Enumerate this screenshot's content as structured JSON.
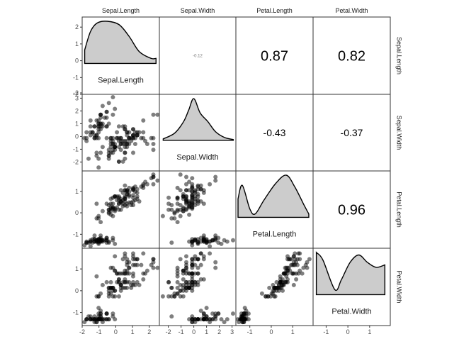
{
  "chart_data": {
    "type": "scatter-matrix",
    "variables": [
      "Sepal.Length",
      "Sepal.Width",
      "Petal.Length",
      "Petal.Width"
    ],
    "ranges": {
      "Sepal.Length": [
        -2,
        2.6
      ],
      "Sepal.Width": [
        -2.7,
        3.3
      ],
      "Petal.Length": [
        -1.65,
        1.95
      ],
      "Petal.Width": [
        -1.6,
        1.95
      ]
    },
    "ticks": {
      "Sepal.Length": [
        -2,
        -1,
        0,
        1,
        2
      ],
      "Sepal.Width": [
        -2,
        -1,
        0,
        1,
        2,
        3
      ],
      "Petal.Length": [
        -1,
        0,
        1
      ],
      "Petal.Width": [
        -1,
        0,
        1
      ]
    },
    "correlations": [
      {
        "row": "Sepal.Length",
        "col": "Sepal.Width",
        "label": "",
        "tiny": "-0.12"
      },
      {
        "row": "Sepal.Length",
        "col": "Petal.Length",
        "label": "0.87"
      },
      {
        "row": "Sepal.Length",
        "col": "Petal.Width",
        "label": "0.82"
      },
      {
        "row": "Sepal.Width",
        "col": "Petal.Length",
        "label": "-0.43"
      },
      {
        "row": "Sepal.Width",
        "col": "Petal.Width",
        "label": "-0.37"
      },
      {
        "row": "Petal.Length",
        "col": "Petal.Width",
        "label": "0.96"
      }
    ],
    "densities": {
      "Sepal.Length": [
        [
          -1.85,
          0.8
        ],
        [
          -1.5,
          1.9
        ],
        [
          -1.1,
          2.4
        ],
        [
          -0.5,
          2.5
        ],
        [
          0.2,
          2.3
        ],
        [
          0.8,
          1.6
        ],
        [
          1.4,
          0.7
        ],
        [
          2.1,
          0.3
        ],
        [
          2.4,
          0.3
        ]
      ],
      "Sepal.Width": [
        [
          -2.4,
          0.1
        ],
        [
          -1.5,
          0.5
        ],
        [
          -0.8,
          1.3
        ],
        [
          -0.4,
          2.1
        ],
        [
          0,
          2.9
        ],
        [
          0.5,
          1.9
        ],
        [
          1.1,
          1.3
        ],
        [
          1.7,
          0.6
        ],
        [
          2.4,
          0.2
        ],
        [
          3.1,
          0.05
        ]
      ],
      "Petal.Length": [
        [
          -1.55,
          0.55
        ],
        [
          -1.35,
          0.95
        ],
        [
          -1.0,
          0.25
        ],
        [
          -0.75,
          0.1
        ],
        [
          -0.35,
          0.5
        ],
        [
          0.2,
          1.0
        ],
        [
          0.7,
          1.25
        ],
        [
          1.1,
          0.9
        ],
        [
          1.5,
          0.4
        ],
        [
          1.75,
          0.1
        ]
      ],
      "Petal.Width": [
        [
          -1.45,
          0.85
        ],
        [
          -1.15,
          0.7
        ],
        [
          -0.6,
          0.1
        ],
        [
          -0.3,
          0.3
        ],
        [
          0.1,
          0.65
        ],
        [
          0.5,
          0.8
        ],
        [
          0.9,
          0.65
        ],
        [
          1.3,
          0.55
        ],
        [
          1.7,
          0.6
        ]
      ]
    },
    "observations": [
      {
        "sl": -0.9,
        "sw": 1.0,
        "pl": -1.34,
        "pw": -1.31
      },
      {
        "sl": -1.14,
        "sw": -0.13,
        "pl": -1.34,
        "pw": -1.31
      },
      {
        "sl": -1.38,
        "sw": 0.33,
        "pl": -1.39,
        "pw": -1.31
      },
      {
        "sl": -1.5,
        "sw": 0.1,
        "pl": -1.28,
        "pw": -1.31
      },
      {
        "sl": -1.02,
        "sw": 1.25,
        "pl": -1.34,
        "pw": -1.31
      },
      {
        "sl": -0.54,
        "sw": 1.93,
        "pl": -1.17,
        "pw": -1.05
      },
      {
        "sl": -1.5,
        "sw": 0.79,
        "pl": -1.34,
        "pw": -1.18
      },
      {
        "sl": -1.02,
        "sw": 0.79,
        "pl": -1.28,
        "pw": -1.31
      },
      {
        "sl": -1.74,
        "sw": -0.36,
        "pl": -1.34,
        "pw": -1.31
      },
      {
        "sl": -1.14,
        "sw": 0.1,
        "pl": -1.28,
        "pw": -1.44
      },
      {
        "sl": -0.54,
        "sw": 1.47,
        "pl": -1.28,
        "pw": -1.31
      },
      {
        "sl": -1.26,
        "sw": 0.79,
        "pl": -1.23,
        "pw": -1.31
      },
      {
        "sl": -1.26,
        "sw": -0.13,
        "pl": -1.34,
        "pw": -1.44
      },
      {
        "sl": -1.86,
        "sw": -0.13,
        "pl": -1.51,
        "pw": -1.44
      },
      {
        "sl": -0.05,
        "sw": 2.16,
        "pl": -1.45,
        "pw": -1.31
      },
      {
        "sl": -0.17,
        "sw": 3.08,
        "pl": -1.28,
        "pw": -1.05
      },
      {
        "sl": -0.54,
        "sw": 1.93,
        "pl": -1.39,
        "pw": -1.05
      },
      {
        "sl": -0.9,
        "sw": 1.0,
        "pl": -1.34,
        "pw": -1.18
      },
      {
        "sl": -0.17,
        "sw": 1.7,
        "pl": -1.17,
        "pw": -1.18
      },
      {
        "sl": -0.9,
        "sw": 1.7,
        "pl": -1.28,
        "pw": -1.18
      },
      {
        "sl": -0.54,
        "sw": 0.79,
        "pl": -1.17,
        "pw": -1.31
      },
      {
        "sl": -0.9,
        "sw": 1.47,
        "pl": -1.28,
        "pw": -1.05
      },
      {
        "sl": -1.5,
        "sw": 1.25,
        "pl": -1.56,
        "pw": -1.31
      },
      {
        "sl": -0.9,
        "sw": 0.56,
        "pl": -1.17,
        "pw": -0.92
      },
      {
        "sl": -1.26,
        "sw": 0.79,
        "pl": -1.06,
        "pw": -1.31
      },
      {
        "sl": -1.02,
        "sw": -0.13,
        "pl": -1.23,
        "pw": -1.31
      },
      {
        "sl": -1.02,
        "sw": 0.79,
        "pl": -1.23,
        "pw": -1.05
      },
      {
        "sl": -0.78,
        "sw": 1.0,
        "pl": -1.28,
        "pw": -1.31
      },
      {
        "sl": -0.78,
        "sw": 0.79,
        "pl": -1.34,
        "pw": -1.31
      },
      {
        "sl": -1.38,
        "sw": 0.33,
        "pl": -1.23,
        "pw": -1.31
      },
      {
        "sl": -1.26,
        "sw": 0.1,
        "pl": -1.23,
        "pw": -1.31
      },
      {
        "sl": -0.54,
        "sw": 0.79,
        "pl": -1.28,
        "pw": -1.05
      },
      {
        "sl": -0.78,
        "sw": 2.39,
        "pl": -1.28,
        "pw": -1.44
      },
      {
        "sl": -0.41,
        "sw": 2.62,
        "pl": -1.34,
        "pw": -1.31
      },
      {
        "sl": -1.14,
        "sw": 0.1,
        "pl": -1.28,
        "pw": -1.31
      },
      {
        "sl": -1.02,
        "sw": 0.33,
        "pl": -1.45,
        "pw": -1.31
      },
      {
        "sl": -0.41,
        "sw": 1.0,
        "pl": -1.39,
        "pw": -1.31
      },
      {
        "sl": -1.14,
        "sw": 1.25,
        "pl": -1.34,
        "pw": -1.44
      },
      {
        "sl": -1.74,
        "sw": -0.13,
        "pl": -1.39,
        "pw": -1.31
      },
      {
        "sl": -0.9,
        "sw": 0.79,
        "pl": -1.28,
        "pw": -1.31
      },
      {
        "sl": -1.02,
        "sw": 1.0,
        "pl": -1.39,
        "pw": -1.18
      },
      {
        "sl": -1.62,
        "sw": -1.74,
        "pl": -1.39,
        "pw": -1.18
      },
      {
        "sl": -1.74,
        "sw": 0.33,
        "pl": -1.39,
        "pw": -1.31
      },
      {
        "sl": -1.02,
        "sw": 1.0,
        "pl": -1.23,
        "pw": -0.79
      },
      {
        "sl": -0.9,
        "sw": 1.7,
        "pl": -1.06,
        "pw": -1.05
      },
      {
        "sl": -1.26,
        "sw": -0.13,
        "pl": -1.34,
        "pw": -1.18
      },
      {
        "sl": -0.9,
        "sw": 1.7,
        "pl": -1.23,
        "pw": -1.31
      },
      {
        "sl": -1.5,
        "sw": 0.33,
        "pl": -1.34,
        "pw": -1.31
      },
      {
        "sl": -0.66,
        "sw": 1.47,
        "pl": -1.28,
        "pw": -1.31
      },
      {
        "sl": -1.02,
        "sw": 0.56,
        "pl": -1.34,
        "pw": -1.31
      },
      {
        "sl": 1.4,
        "sw": 0.33,
        "pl": 0.53,
        "pw": 0.26
      },
      {
        "sl": 0.67,
        "sw": 0.33,
        "pl": 0.42,
        "pw": 0.39
      },
      {
        "sl": 1.28,
        "sw": 0.1,
        "pl": 0.65,
        "pw": 0.39
      },
      {
        "sl": -0.41,
        "sw": -1.74,
        "pl": 0.14,
        "pw": 0.13
      },
      {
        "sl": 0.8,
        "sw": -0.59,
        "pl": 0.48,
        "pw": 0.39
      },
      {
        "sl": -0.17,
        "sw": -0.59,
        "pl": 0.42,
        "pw": 0.13
      },
      {
        "sl": 0.55,
        "sw": 0.56,
        "pl": 0.53,
        "pw": 0.52
      },
      {
        "sl": -1.14,
        "sw": -1.51,
        "pl": -0.26,
        "pw": -0.26
      },
      {
        "sl": 0.92,
        "sw": -0.36,
        "pl": 0.48,
        "pw": 0.13
      },
      {
        "sl": -0.78,
        "sw": -0.82,
        "pl": 0.08,
        "pw": 0.26
      },
      {
        "sl": -1.02,
        "sw": -2.43,
        "pl": -0.15,
        "pw": -0.26
      },
      {
        "sl": 0.07,
        "sw": -0.13,
        "pl": 0.25,
        "pw": 0.39
      },
      {
        "sl": 0.19,
        "sw": -1.97,
        "pl": 0.14,
        "pw": -0.26
      },
      {
        "sl": 0.31,
        "sw": -0.36,
        "pl": 0.53,
        "pw": 0.26
      },
      {
        "sl": -0.29,
        "sw": -0.36,
        "pl": -0.09,
        "pw": 0.13
      },
      {
        "sl": 1.04,
        "sw": 0.1,
        "pl": 0.36,
        "pw": 0.26
      },
      {
        "sl": -0.29,
        "sw": -0.13,
        "pl": 0.42,
        "pw": 0.39
      },
      {
        "sl": -0.05,
        "sw": -0.82,
        "pl": 0.19,
        "pw": -0.26
      },
      {
        "sl": 0.43,
        "sw": -1.97,
        "pl": 0.42,
        "pw": 0.39
      },
      {
        "sl": -0.29,
        "sw": -1.28,
        "pl": 0.08,
        "pw": -0.13
      },
      {
        "sl": 0.07,
        "sw": 0.33,
        "pl": 0.59,
        "pw": 0.79
      },
      {
        "sl": 0.31,
        "sw": -0.59,
        "pl": 0.14,
        "pw": 0.13
      },
      {
        "sl": 0.55,
        "sw": -1.28,
        "pl": 0.65,
        "pw": 0.39
      },
      {
        "sl": 0.31,
        "sw": -0.59,
        "pl": 0.53,
        "pw": 0.0
      },
      {
        "sl": 0.67,
        "sw": -0.36,
        "pl": 0.31,
        "pw": 0.13
      },
      {
        "sl": 0.92,
        "sw": -0.13,
        "pl": 0.36,
        "pw": 0.26
      },
      {
        "sl": 1.16,
        "sw": -0.59,
        "pl": 0.59,
        "pw": 0.26
      },
      {
        "sl": 1.04,
        "sw": -0.13,
        "pl": 0.7,
        "pw": 0.66
      },
      {
        "sl": 0.19,
        "sw": -0.36,
        "pl": 0.42,
        "pw": 0.39
      },
      {
        "sl": -0.17,
        "sw": -1.05,
        "pl": -0.15,
        "pw": -0.26
      },
      {
        "sl": -0.41,
        "sw": -1.51,
        "pl": 0.02,
        "pw": -0.13
      },
      {
        "sl": -0.41,
        "sw": -1.51,
        "pl": -0.03,
        "pw": -0.26
      },
      {
        "sl": -0.05,
        "sw": -0.82,
        "pl": 0.08,
        "pw": 0.0
      },
      {
        "sl": 0.19,
        "sw": -0.82,
        "pl": 0.76,
        "pw": 0.52
      },
      {
        "sl": -0.54,
        "sw": -0.13,
        "pl": 0.42,
        "pw": 0.39
      },
      {
        "sl": 0.19,
        "sw": 0.79,
        "pl": 0.42,
        "pw": 0.52
      },
      {
        "sl": 1.04,
        "sw": 0.1,
        "pl": 0.53,
        "pw": 0.39
      },
      {
        "sl": 0.55,
        "sw": -1.74,
        "pl": 0.36,
        "pw": 0.13
      },
      {
        "sl": -0.29,
        "sw": -0.13,
        "pl": 0.19,
        "pw": 0.13
      },
      {
        "sl": -0.41,
        "sw": -1.28,
        "pl": 0.14,
        "pw": 0.13
      },
      {
        "sl": -0.41,
        "sw": -1.05,
        "pl": 0.36,
        "pw": 0.0
      },
      {
        "sl": 0.31,
        "sw": -0.13,
        "pl": 0.48,
        "pw": 0.26
      },
      {
        "sl": -0.05,
        "sw": -1.05,
        "pl": 0.14,
        "pw": 0.0
      },
      {
        "sl": -1.02,
        "sw": -1.74,
        "pl": -0.26,
        "pw": -0.26
      },
      {
        "sl": -0.29,
        "sw": -0.82,
        "pl": 0.25,
        "pw": 0.13
      },
      {
        "sl": -0.17,
        "sw": -0.13,
        "pl": 0.25,
        "pw": 0.0
      },
      {
        "sl": -0.17,
        "sw": -0.36,
        "pl": 0.25,
        "pw": 0.13
      },
      {
        "sl": 0.43,
        "sw": -0.36,
        "pl": 0.31,
        "pw": 0.13
      },
      {
        "sl": -0.9,
        "sw": -1.28,
        "pl": -0.43,
        "pw": -0.13
      },
      {
        "sl": -0.17,
        "sw": -0.59,
        "pl": 0.19,
        "pw": 0.13
      },
      {
        "sl": 0.55,
        "sw": 0.56,
        "pl": 1.27,
        "pw": 1.71
      },
      {
        "sl": -0.05,
        "sw": -0.82,
        "pl": 0.76,
        "pw": 0.92
      },
      {
        "sl": 1.52,
        "sw": -0.13,
        "pl": 1.22,
        "pw": 1.18
      },
      {
        "sl": 0.55,
        "sw": -0.36,
        "pl": 1.05,
        "pw": 0.79
      },
      {
        "sl": 0.8,
        "sw": -0.13,
        "pl": 1.16,
        "pw": 1.31
      },
      {
        "sl": 2.12,
        "sw": -0.13,
        "pl": 1.61,
        "pw": 1.18
      },
      {
        "sl": -1.14,
        "sw": -1.28,
        "pl": 0.42,
        "pw": 0.66
      },
      {
        "sl": 1.76,
        "sw": -0.36,
        "pl": 1.44,
        "pw": 0.79
      },
      {
        "sl": 1.04,
        "sw": -1.28,
        "pl": 1.16,
        "pw": 0.79
      },
      {
        "sl": 1.64,
        "sw": 1.25,
        "pl": 1.33,
        "pw": 1.71
      },
      {
        "sl": 0.8,
        "sw": 0.33,
        "pl": 0.76,
        "pw": 1.05
      },
      {
        "sl": 0.67,
        "sw": -0.82,
        "pl": 0.87,
        "pw": 0.92
      },
      {
        "sl": 1.16,
        "sw": -0.13,
        "pl": 0.99,
        "pw": 1.18
      },
      {
        "sl": -0.17,
        "sw": -1.28,
        "pl": 0.7,
        "pw": 1.05
      },
      {
        "sl": -0.05,
        "sw": -0.59,
        "pl": 0.76,
        "pw": 1.58
      },
      {
        "sl": 0.67,
        "sw": 0.33,
        "pl": 0.87,
        "pw": 1.45
      },
      {
        "sl": 0.8,
        "sw": -0.13,
        "pl": 0.99,
        "pw": 0.79
      },
      {
        "sl": 2.24,
        "sw": 1.7,
        "pl": 1.67,
        "pw": 1.31
      },
      {
        "sl": 2.24,
        "sw": -1.05,
        "pl": 1.78,
        "pw": 1.45
      },
      {
        "sl": 0.19,
        "sw": -1.97,
        "pl": 0.7,
        "pw": 0.39
      },
      {
        "sl": 1.28,
        "sw": 0.33,
        "pl": 1.1,
        "pw": 1.45
      },
      {
        "sl": -0.29,
        "sw": -0.59,
        "pl": 0.65,
        "pw": 1.05
      },
      {
        "sl": 2.24,
        "sw": -0.59,
        "pl": 1.67,
        "pw": 1.05
      },
      {
        "sl": 0.55,
        "sw": -0.82,
        "pl": 0.65,
        "pw": 0.79
      },
      {
        "sl": 1.04,
        "sw": 0.56,
        "pl": 1.1,
        "pw": 1.18
      },
      {
        "sl": 1.64,
        "sw": 0.33,
        "pl": 1.27,
        "pw": 0.79
      },
      {
        "sl": 0.43,
        "sw": -0.59,
        "pl": 0.59,
        "pw": 0.79
      },
      {
        "sl": 0.31,
        "sw": -0.13,
        "pl": 0.65,
        "pw": 0.79
      },
      {
        "sl": 0.67,
        "sw": -0.59,
        "pl": 1.05,
        "pw": 1.18
      },
      {
        "sl": 1.64,
        "sw": -0.13,
        "pl": 1.16,
        "pw": 0.52
      },
      {
        "sl": 1.88,
        "sw": -0.59,
        "pl": 1.33,
        "pw": 0.92
      },
      {
        "sl": 2.49,
        "sw": 1.7,
        "pl": 1.5,
        "pw": 1.05
      },
      {
        "sl": 0.67,
        "sw": -0.59,
        "pl": 1.05,
        "pw": 1.31
      },
      {
        "sl": 0.55,
        "sw": -0.59,
        "pl": 0.76,
        "pw": 0.39
      },
      {
        "sl": 0.31,
        "sw": -1.05,
        "pl": 1.05,
        "pw": 0.26
      },
      {
        "sl": 2.24,
        "sw": -0.13,
        "pl": 1.33,
        "pw": 1.45
      },
      {
        "sl": 0.55,
        "sw": 0.79,
        "pl": 1.05,
        "pw": 1.58
      },
      {
        "sl": 0.67,
        "sw": 0.1,
        "pl": 0.99,
        "pw": 0.79
      },
      {
        "sl": 0.19,
        "sw": -0.13,
        "pl": 0.59,
        "pw": 0.79
      },
      {
        "sl": 1.28,
        "sw": 0.1,
        "pl": 0.93,
        "pw": 1.18
      },
      {
        "sl": 1.04,
        "sw": 0.1,
        "pl": 1.05,
        "pw": 1.58
      },
      {
        "sl": 1.28,
        "sw": 0.1,
        "pl": 0.76,
        "pw": 1.45
      },
      {
        "sl": -0.05,
        "sw": -0.82,
        "pl": 0.76,
        "pw": 0.92
      },
      {
        "sl": 1.16,
        "sw": 0.33,
        "pl": 1.22,
        "pw": 1.45
      },
      {
        "sl": 1.04,
        "sw": 0.56,
        "pl": 1.1,
        "pw": 1.71
      },
      {
        "sl": 1.04,
        "sw": -0.13,
        "pl": 0.82,
        "pw": 1.45
      },
      {
        "sl": 0.55,
        "sw": -1.28,
        "pl": 0.7,
        "pw": 0.92
      },
      {
        "sl": 0.8,
        "sw": -0.13,
        "pl": 0.82,
        "pw": 1.05
      },
      {
        "sl": 0.43,
        "sw": 0.79,
        "pl": 0.93,
        "pw": 1.45
      },
      {
        "sl": 0.07,
        "sw": -0.13,
        "pl": 0.76,
        "pw": 0.79
      }
    ]
  }
}
